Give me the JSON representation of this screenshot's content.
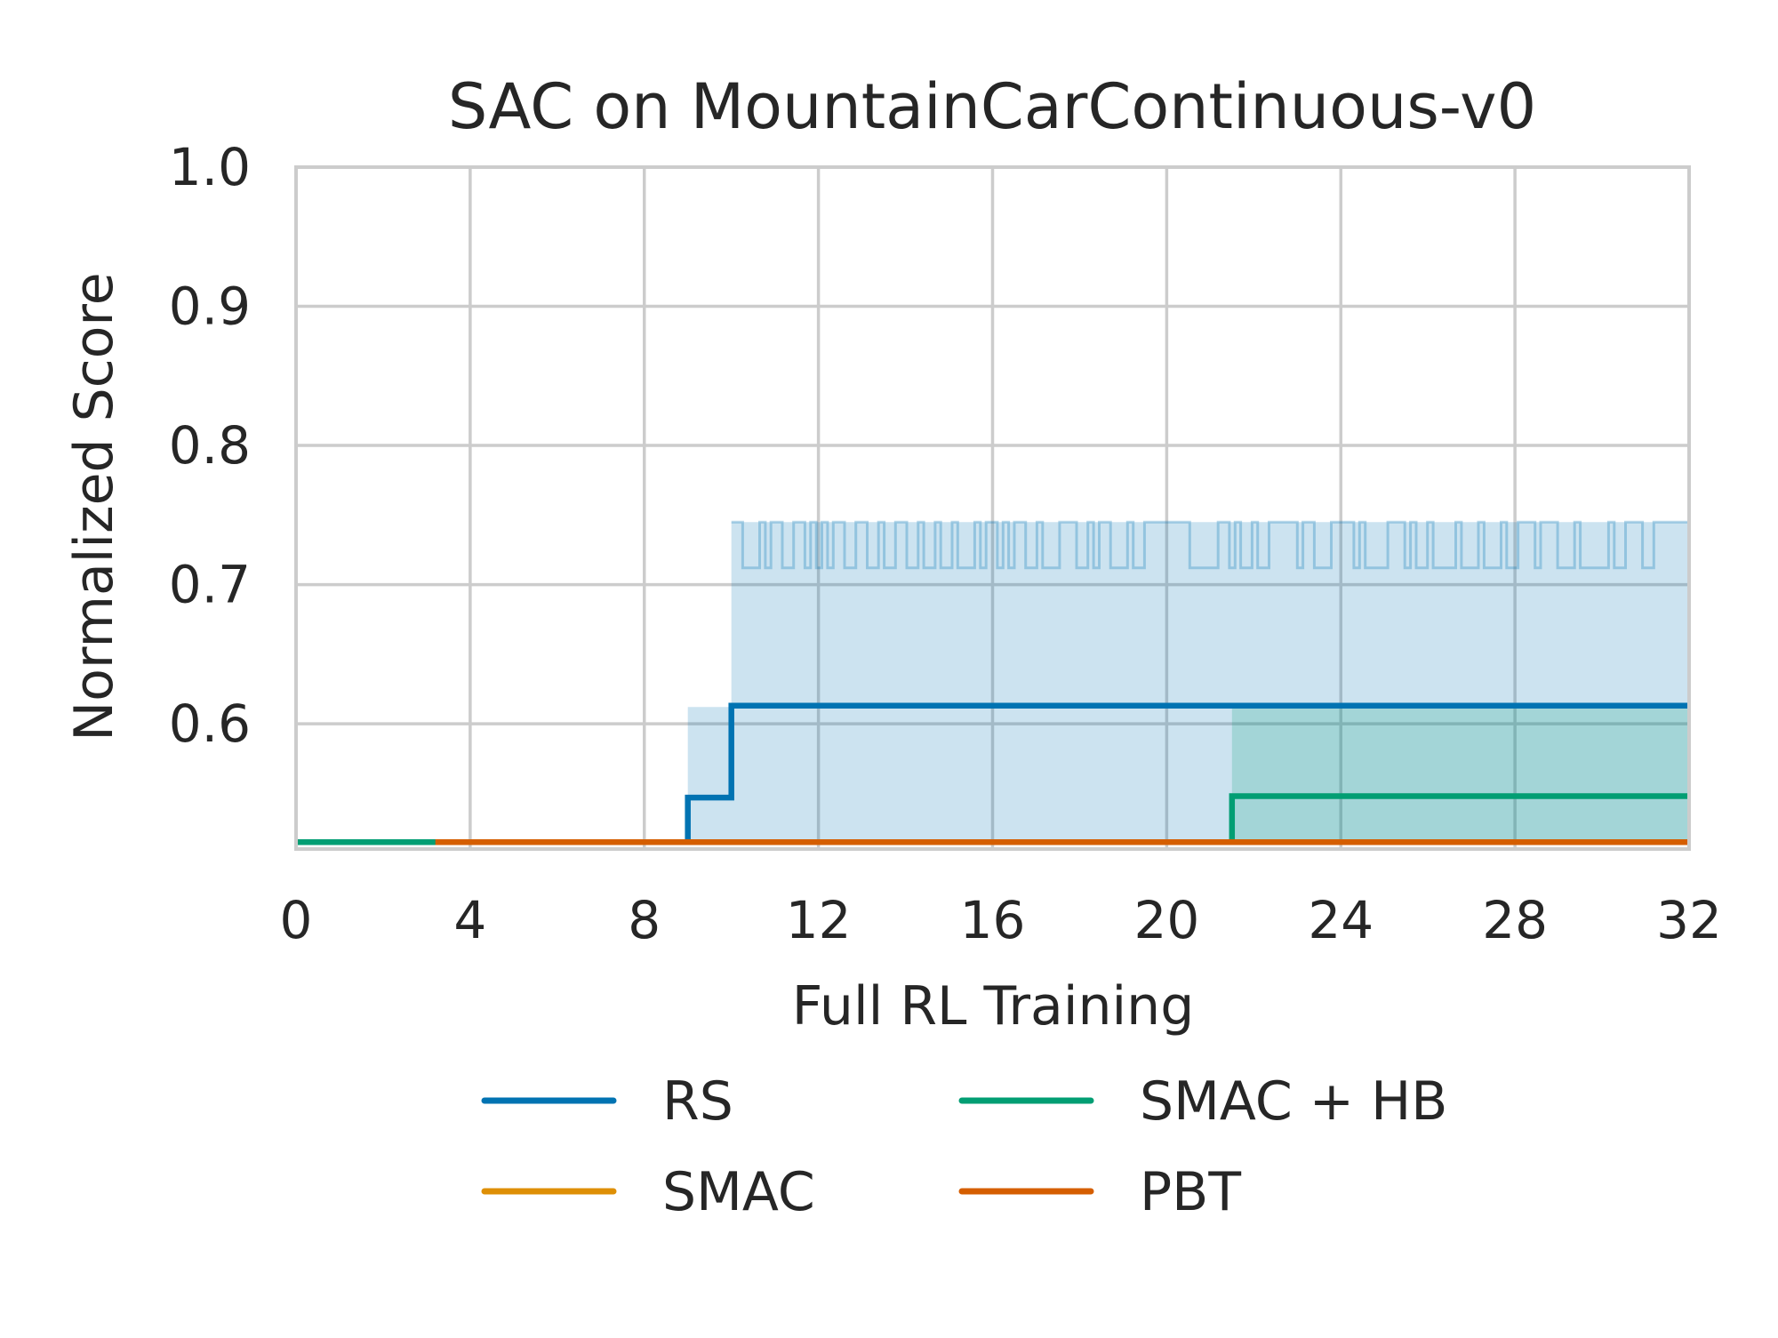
{
  "chart_data": {
    "type": "line",
    "title": "SAC on MountainCarContinuous-v0",
    "xlabel": "Full RL Training",
    "ylabel": "Normalized Score",
    "xlim": [
      0,
      32
    ],
    "ylim": [
      0.51,
      1.0
    ],
    "xticks": [
      0,
      4,
      8,
      12,
      16,
      20,
      24,
      28,
      32
    ],
    "yticks": [
      0.6,
      0.7,
      0.8,
      0.9,
      1.0
    ],
    "xtick_labels": [
      "0",
      "4",
      "8",
      "12",
      "16",
      "20",
      "24",
      "28",
      "32"
    ],
    "ytick_labels": [
      "0.6",
      "0.7",
      "0.8",
      "0.9",
      "1.0"
    ],
    "grid": true,
    "legend": {
      "position": "below",
      "columns": 2
    },
    "series": [
      {
        "name": "RS",
        "color": "#0173b2",
        "step": true,
        "x": [
          0,
          9.0,
          9.0,
          10.0,
          10.0,
          32
        ],
        "y": [
          0.515,
          0.515,
          0.547,
          0.547,
          0.613,
          0.613
        ],
        "band": {
          "x": [
            0,
            9.0,
            9.0,
            10.0,
            10.0,
            32
          ],
          "lower": [
            0.515,
            0.515,
            0.515,
            0.515,
            0.515,
            0.515
          ],
          "upper": [
            0.515,
            0.515,
            0.612,
            0.612,
            0.745,
            0.745
          ],
          "upper_jitter_low": 0.712
        }
      },
      {
        "name": "SMAC",
        "color": "#de8f05",
        "step": true,
        "x": [
          0,
          32
        ],
        "y": [
          0.515,
          0.515
        ]
      },
      {
        "name": "SMAC + HB",
        "color": "#029e73",
        "step": true,
        "x": [
          0,
          21.5,
          21.5,
          32
        ],
        "y": [
          0.515,
          0.515,
          0.548,
          0.548
        ],
        "band": {
          "x": [
            0,
            21.5,
            21.5,
            32
          ],
          "lower": [
            0.515,
            0.515,
            0.515,
            0.515
          ],
          "upper": [
            0.515,
            0.515,
            0.612,
            0.612
          ]
        }
      },
      {
        "name": "PBT",
        "color": "#d55e00",
        "step": true,
        "x": [
          3.2,
          32
        ],
        "y": [
          0.515,
          0.515
        ]
      }
    ]
  }
}
